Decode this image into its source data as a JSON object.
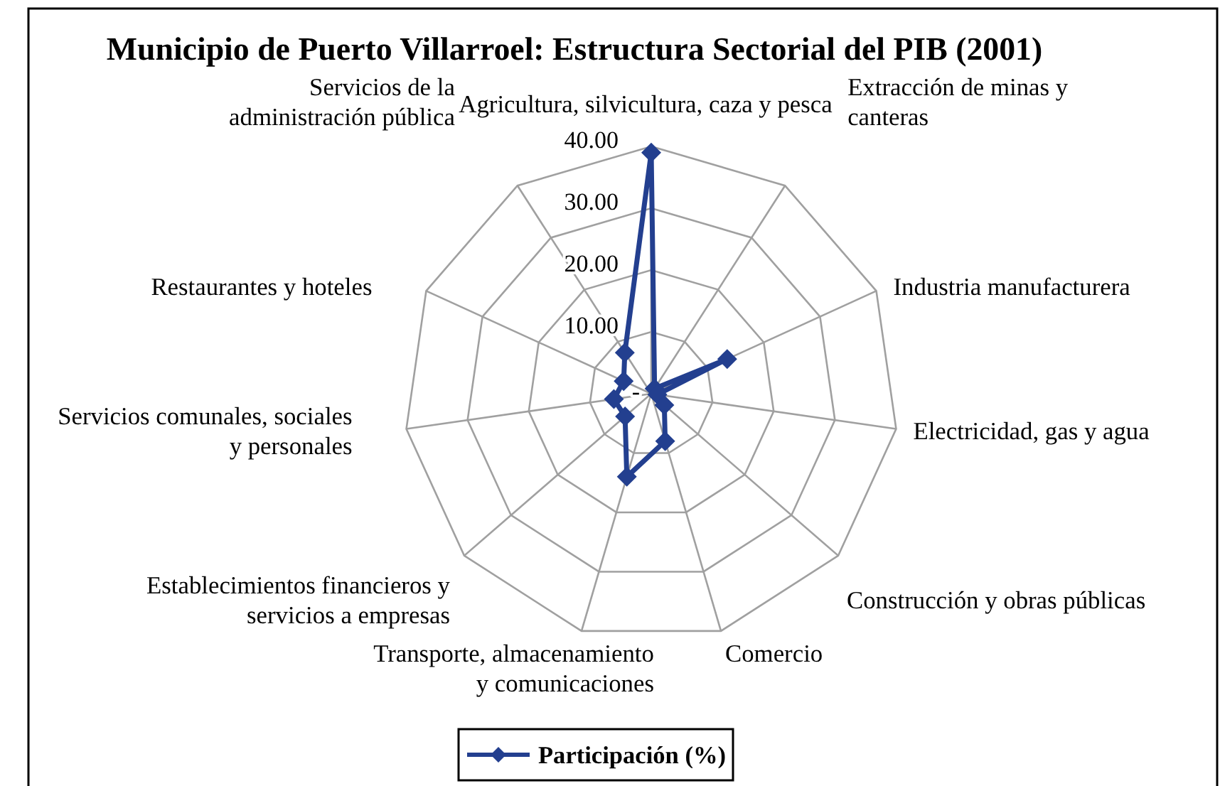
{
  "chart_data": {
    "type": "radar",
    "title": "Municipio de Puerto Villarroel: Estructura Sectorial del PIB (2001)",
    "categories": [
      "Agricultura, silvicultura, caza y pesca",
      "Extracción de minas y canteras",
      "Industria manufacturera",
      "Electricidad, gas y agua",
      "Construcción y obras públicas",
      "Comercio",
      "Transporte, almacenamiento\ny comunicaciones",
      "Establecimientos financieros y\nservicios a empresas",
      "Servicios comunales, sociales\ny personales",
      "Restaurantes y hoteles",
      "Servicios de la administración pública"
    ],
    "series": [
      {
        "name": "Participación (%)",
        "color": "#233f8f",
        "values": [
          39.0,
          1.0,
          13.5,
          1.0,
          2.8,
          8.0,
          14.0,
          5.6,
          6.1,
          4.9,
          7.9
        ]
      }
    ],
    "ylim": [
      0,
      40
    ],
    "yticks": [
      {
        "value": 0,
        "label": "-"
      },
      {
        "value": 10,
        "label": "10.00"
      },
      {
        "value": 20,
        "label": "20.00"
      },
      {
        "value": 30,
        "label": "30.00"
      },
      {
        "value": 40,
        "label": "40.00"
      }
    ],
    "grid": true,
    "marker": "diamond",
    "line_style": "solid",
    "legend": "bottom"
  }
}
